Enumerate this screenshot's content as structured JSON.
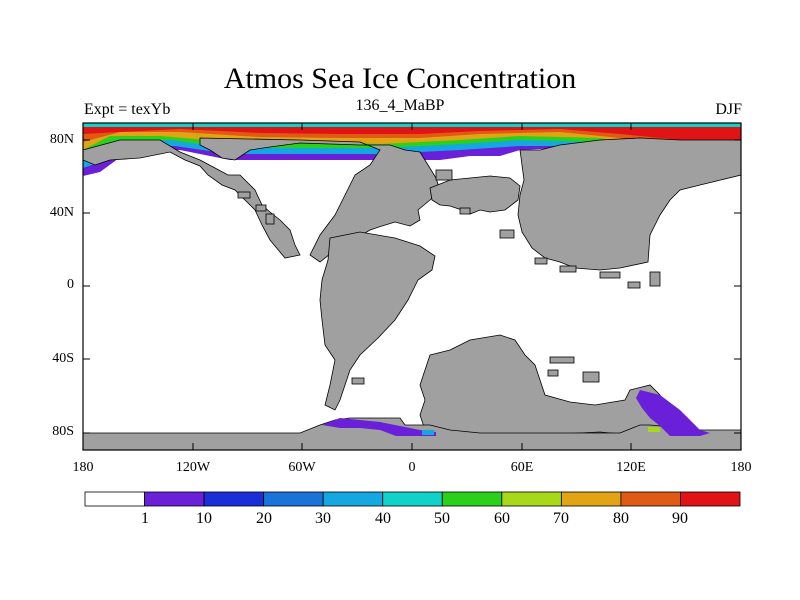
{
  "header": {
    "title": "Atmos Sea Ice Concentration",
    "left": "Expt = texYb",
    "center": "136_4_MaBP",
    "right": "DJF"
  },
  "axes": {
    "lat_ticks": [
      "80N",
      "40N",
      "0",
      "40S",
      "80S"
    ],
    "lon_ticks": [
      "180",
      "120W",
      "60W",
      "0",
      "60E",
      "120E",
      "180"
    ]
  },
  "colorbar": {
    "labels": [
      "1",
      "10",
      "20",
      "30",
      "40",
      "50",
      "60",
      "70",
      "80",
      "90"
    ],
    "colors": [
      "#ffffff",
      "#6a1fd8",
      "#1a2fd8",
      "#1a73d8",
      "#15a8e0",
      "#10d2c8",
      "#2ad01a",
      "#a8d81a",
      "#e0a414",
      "#e05a14",
      "#e01414"
    ]
  },
  "colors": {
    "land": "#a0a0a0",
    "ocean": "#ffffff"
  }
}
